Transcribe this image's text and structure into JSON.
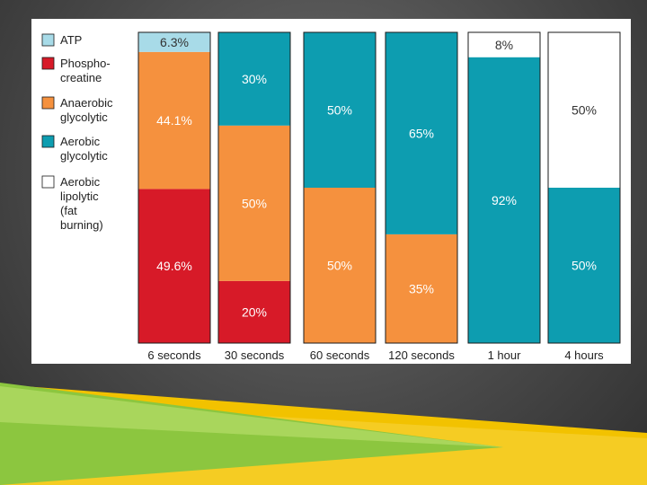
{
  "chart_data": {
    "type": "bar",
    "stacked": true,
    "normalized_percent": true,
    "categories": [
      "6 seconds",
      "30 seconds",
      "60 seconds",
      "120 seconds",
      "1 hour",
      "4 hours"
    ],
    "series": [
      {
        "name": "ATP",
        "color": "#a8dbe8",
        "values": [
          6.3,
          0,
          0,
          0,
          0,
          0
        ],
        "labels": [
          "6.3%",
          "",
          "",
          "",
          "",
          ""
        ]
      },
      {
        "name": "Phospho-creatine",
        "legend_lines": [
          "Phospho-",
          "creatine"
        ],
        "color": "#d71a28",
        "values": [
          49.6,
          20,
          0,
          0,
          0,
          0
        ],
        "labels": [
          "49.6%",
          "20%",
          "",
          "",
          "",
          ""
        ]
      },
      {
        "name": "Anaerobic glycolytic",
        "legend_lines": [
          "Anaerobic",
          "glycolytic"
        ],
        "color": "#f5913e",
        "values": [
          44.1,
          50,
          50,
          35,
          0,
          0
        ],
        "labels": [
          "44.1%",
          "50%",
          "50%",
          "35%",
          "",
          ""
        ]
      },
      {
        "name": "Aerobic glycolytic",
        "legend_lines": [
          "Aerobic",
          "glycolytic"
        ],
        "color": "#0d9db0",
        "values": [
          0,
          30,
          50,
          65,
          92,
          50
        ],
        "labels": [
          "",
          "30%",
          "50%",
          "65%",
          "92%",
          "50%"
        ]
      },
      {
        "name": "Aerobic lipolytic (fat burning)",
        "legend_lines": [
          "Aerobic",
          "lipolytic",
          "(fat",
          "burning)"
        ],
        "color": "#ffffff",
        "values": [
          0,
          0,
          0,
          0,
          8,
          50
        ],
        "labels": [
          "",
          "",
          "",
          "",
          "8%",
          "50%"
        ]
      }
    ],
    "ylim": [
      0,
      100
    ],
    "grid": false,
    "legend_position": "left"
  },
  "theme": {
    "bar_outline": "#1a1a1a",
    "slide_accent_green": "#8cc63f",
    "slide_accent_yellow": "#f5c400"
  }
}
